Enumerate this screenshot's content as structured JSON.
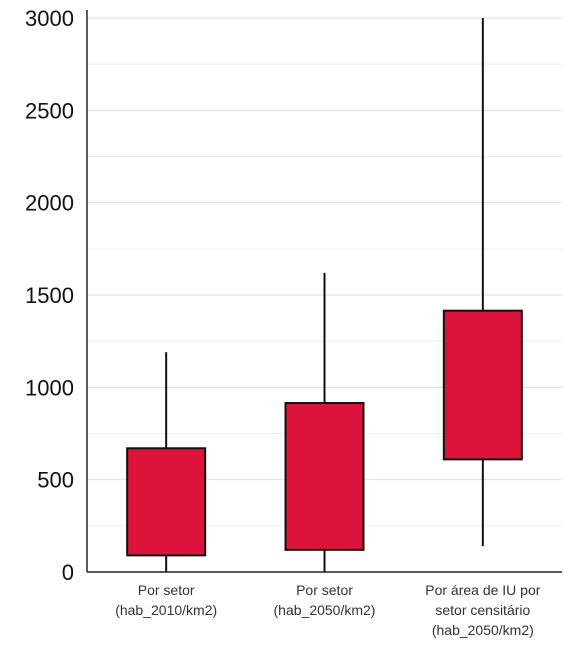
{
  "chart_data": {
    "type": "box",
    "title": "",
    "xlabel": "",
    "ylabel": "",
    "ylim": [
      0,
      3000
    ],
    "yticks": [
      0,
      500,
      1000,
      1500,
      2000,
      2500,
      3000
    ],
    "grid": true,
    "box_color": "#dc143c",
    "categories": [
      {
        "label_lines": [
          "Por setor",
          "(hab_2010/km2)"
        ]
      },
      {
        "label_lines": [
          "Por setor",
          "(hab_2050/km2)"
        ]
      },
      {
        "label_lines": [
          "Por área de IU por",
          "setor censitário",
          "(hab_2050/km2)"
        ]
      }
    ],
    "boxes": [
      {
        "whisker_low": 0,
        "q1": 90,
        "q3": 670,
        "whisker_high": 1190
      },
      {
        "whisker_low": 0,
        "q1": 120,
        "q3": 915,
        "whisker_high": 1620
      },
      {
        "whisker_low": 140,
        "q1": 610,
        "q3": 1415,
        "whisker_high": 3000
      }
    ]
  }
}
